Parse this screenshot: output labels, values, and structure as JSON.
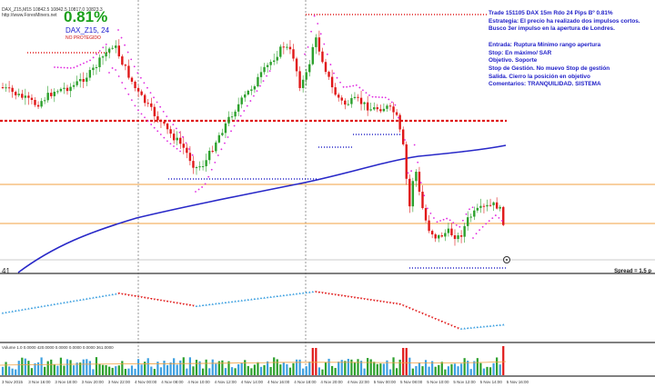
{
  "header": {
    "ohlc": "DAX_Z15,M15  10842.5  10842.5  10817.0  10823.3",
    "site": "http://www.ForexMiners.net"
  },
  "badge": {
    "percent": "0.81%",
    "symbol_timeframe": "DAX_Z15, 24",
    "status": "NO PROTEGIDO"
  },
  "trade_note": {
    "line1": "Trade 151105 DAX 15m Rdo 24 Pips Bº 0.81%",
    "line2": "Estrategia:  El precio ha realizado dos impulsos cortos.",
    "line3": "Busco 3er impulso en la apertura de Londres.",
    "line4": "Entrada: Ruptura Mínimo rango apertura",
    "line5": "Stop: En máximo/ SAR",
    "line6": "Objetivo. Soporte",
    "line7": "Stop de Gestión. No muevo Stop de gestión",
    "line8": "Salida. Cierro la posición en objetivo",
    "line9": "Comentarios: TRANQUILIDAD. SISTEMA"
  },
  "indicator": {
    "value_label": "41",
    "spread_label": "Spread = 1.5 p"
  },
  "volume": {
    "header": "Volume 1.0  0.0000  420.0000  0.0000  0.0000  0.0000  361.0000"
  },
  "time_axis": {
    "labels": [
      "3 Nov 2015",
      "3 Nov 16:00",
      "3 Nov 18:00",
      "3 Nov 20:00",
      "3 Nov 22:00",
      "4 Nov 00:00",
      "4 Nov 08:00",
      "4 Nov 10:00",
      "4 Nov 12:00",
      "4 Nov 14:00",
      "4 Nov 16:00",
      "4 Nov 18:00",
      "4 Nov 20:00",
      "4 Nov 22:00",
      "5 Nov 00:00",
      "5 Nov 08:00",
      "5 Nov 10:00",
      "5 Nov 12:00",
      "5 Nov 14:00",
      "5 Nov 16:00"
    ]
  },
  "colors": {
    "bull": "#2ca02c",
    "bear": "#e01818",
    "sar": "#e028e0",
    "ma": "#2828c8",
    "level": "#f0a040",
    "redline": "#e01818"
  }
}
